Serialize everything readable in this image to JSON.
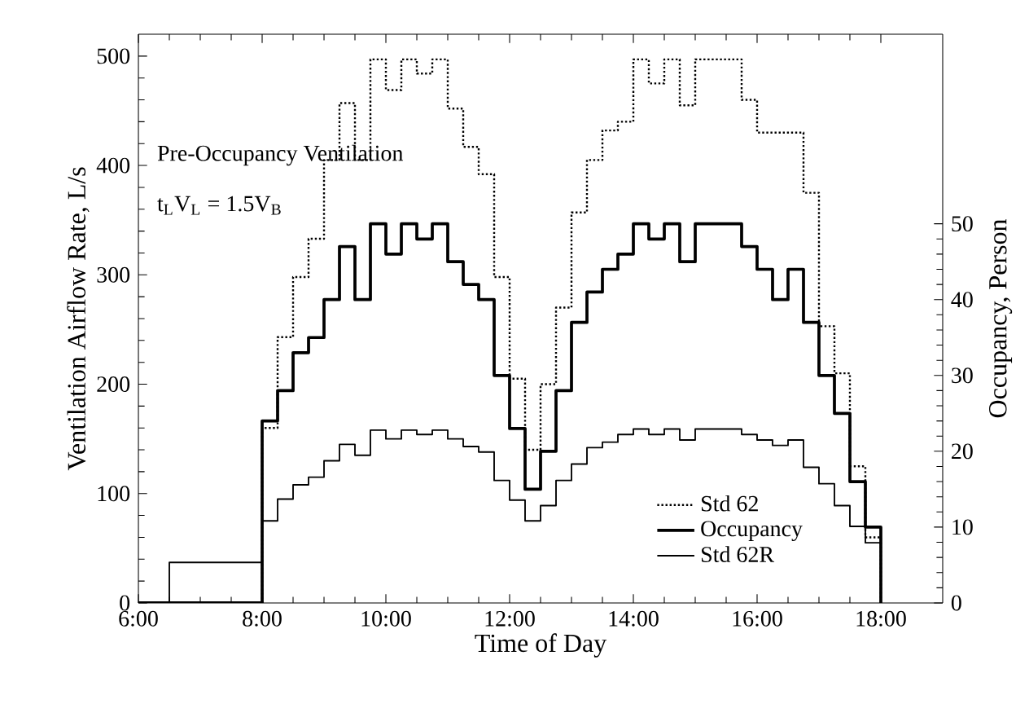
{
  "chart_data": {
    "type": "step",
    "xlabel": "Time of Day",
    "ylabel": "Ventilation Airflow Rate, L/s",
    "y2label": "Occupancy, Person",
    "annotations": [
      "Pre-Occupancy Ventilation",
      "t$_{L}$V$_{L}$ = 1.5V$_{B}$"
    ],
    "xlim": [
      6,
      19
    ],
    "xticks": [
      {
        "value": 6,
        "label": "6:00"
      },
      {
        "value": 8,
        "label": "8:00"
      },
      {
        "value": 10,
        "label": "10:00"
      },
      {
        "value": 12,
        "label": "12:00"
      },
      {
        "value": 14,
        "label": "14:00"
      },
      {
        "value": 16,
        "label": "16:00"
      },
      {
        "value": 18,
        "label": "18:00"
      }
    ],
    "ylim": [
      0,
      520
    ],
    "yticks": [
      0,
      100,
      200,
      300,
      400,
      500
    ],
    "y2lim": [
      0,
      75
    ],
    "y2ticks": [
      0,
      10,
      20,
      30,
      40,
      50
    ],
    "legend": "bottom right",
    "grid": false,
    "marker": "none",
    "series": [
      {
        "name": "Std 62",
        "color": "#000000",
        "line_style": "dotted",
        "x": [
          6,
          8,
          8.25,
          8.5,
          8.75,
          9,
          9.25,
          9.5,
          9.75,
          10,
          10.25,
          10.5,
          10.75,
          11,
          11.25,
          11.5,
          11.75,
          12,
          12.25,
          12.5,
          12.75,
          13,
          13.25,
          13.5,
          13.75,
          14,
          14.25,
          14.5,
          14.75,
          15,
          15.25,
          15.5,
          15.75,
          16,
          16.25,
          16.5,
          16.75,
          17,
          17.25,
          17.5,
          17.75,
          18
        ],
        "values": [
          0,
          160,
          243,
          298,
          333,
          405,
          457,
          405,
          497,
          469,
          497,
          484,
          497,
          452,
          417,
          392,
          298,
          205,
          140,
          200,
          270,
          357,
          405,
          432,
          440,
          497,
          475,
          497,
          455,
          497,
          497,
          497,
          460,
          430,
          430,
          430,
          375,
          253,
          210,
          125,
          60,
          0
        ]
      },
      {
        "name": "Occupancy",
        "color": "#000000",
        "line_style": "solid",
        "axis": "y2",
        "x": [
          6,
          8,
          8.25,
          8.5,
          8.75,
          9,
          9.25,
          9.5,
          9.75,
          10,
          10.25,
          10.5,
          10.75,
          11,
          11.25,
          11.5,
          11.75,
          12,
          12.25,
          12.5,
          12.75,
          13,
          13.25,
          13.5,
          13.75,
          14,
          14.25,
          14.5,
          14.75,
          15,
          15.25,
          15.5,
          15.75,
          16,
          16.25,
          16.5,
          16.75,
          17,
          17.25,
          17.5,
          17.75,
          18
        ],
        "values": [
          0,
          24,
          28,
          33,
          35,
          40,
          47,
          40,
          50,
          46,
          50,
          48,
          50,
          45,
          42,
          40,
          30,
          23,
          15,
          20,
          28,
          37,
          41,
          44,
          46,
          50,
          48,
          50,
          45,
          50,
          50,
          50,
          47,
          44,
          40,
          44,
          37,
          30,
          25,
          16,
          10,
          0
        ]
      },
      {
        "name": "Std 62R",
        "color": "#000000",
        "line_style": "solid",
        "x": [
          6,
          6.5,
          8,
          8.25,
          8.5,
          8.75,
          9,
          9.25,
          9.5,
          9.75,
          10,
          10.25,
          10.5,
          10.75,
          11,
          11.25,
          11.5,
          11.75,
          12,
          12.25,
          12.5,
          12.75,
          13,
          13.25,
          13.5,
          13.75,
          14,
          14.25,
          14.5,
          14.75,
          15,
          15.25,
          15.5,
          15.75,
          16,
          16.25,
          16.5,
          16.75,
          17,
          17.25,
          17.5,
          17.75,
          18
        ],
        "values": [
          0,
          37,
          75,
          95,
          108,
          115,
          130,
          145,
          135,
          158,
          150,
          158,
          154,
          158,
          150,
          143,
          138,
          112,
          94,
          75,
          89,
          112,
          127,
          142,
          147,
          154,
          159,
          154,
          159,
          149,
          159,
          159,
          159,
          154,
          149,
          144,
          149,
          124,
          109,
          89,
          70,
          55,
          0
        ]
      }
    ]
  }
}
